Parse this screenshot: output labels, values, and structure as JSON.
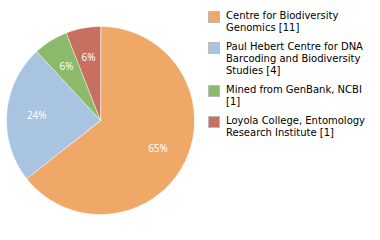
{
  "chart_data": {
    "type": "pie",
    "categories": [
      "Centre for Biodiversity\nGenomics [11]",
      "Paul Hebert Centre for DNA\nBarcoding and Biodiversity\nStudies [4]",
      "Mined from GenBank, NCBI [1]",
      "Loyola College, Entomology\nResearch Institute [1]"
    ],
    "values": [
      65,
      24,
      6,
      6
    ],
    "value_labels": [
      "65%",
      "24%",
      "6%",
      "6%"
    ],
    "colors": [
      "#f0a868",
      "#a8c4e0",
      "#8aba6a",
      "#c87060"
    ],
    "data_labels": true,
    "legend": "right"
  }
}
